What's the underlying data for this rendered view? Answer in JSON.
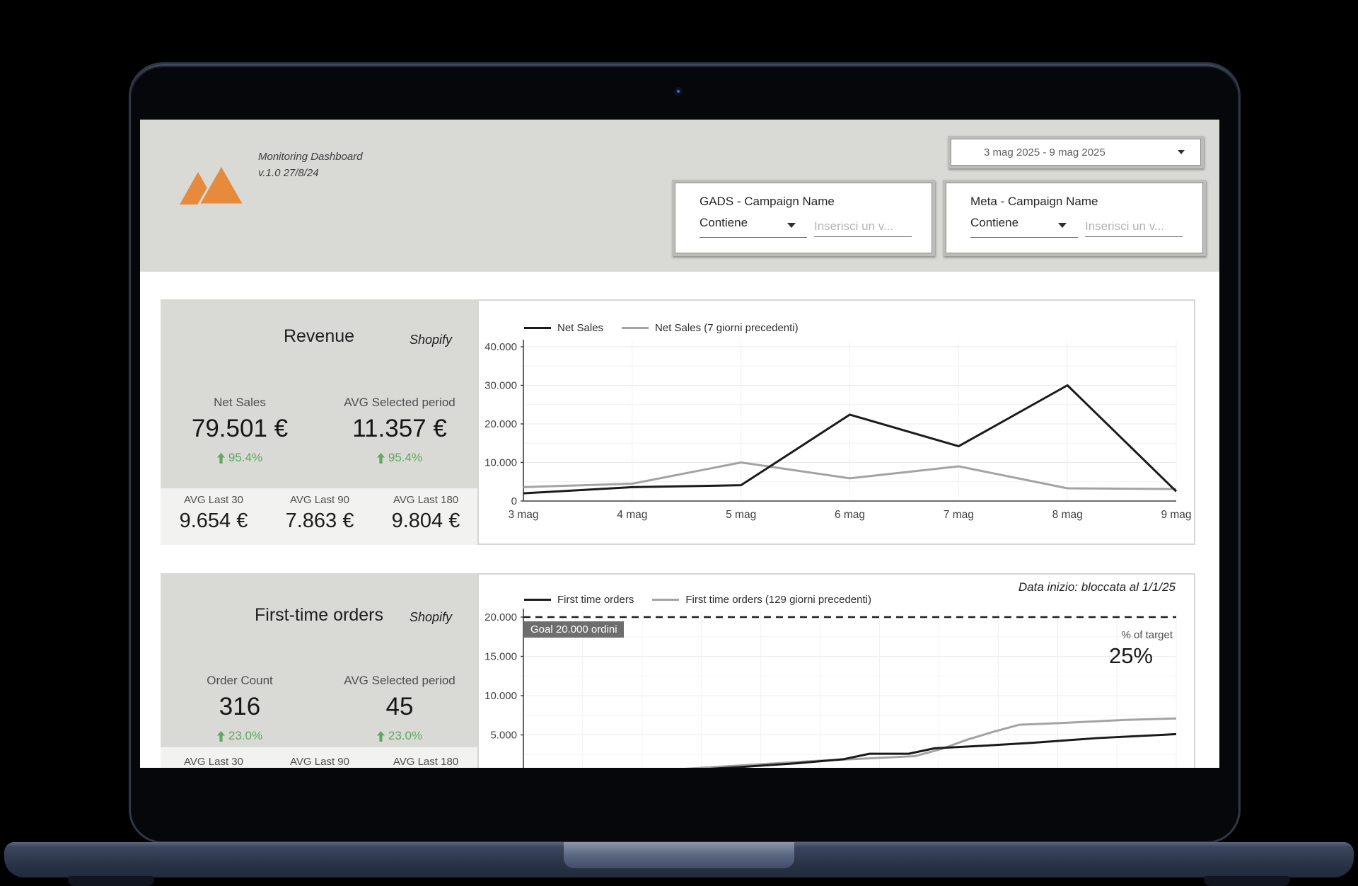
{
  "header": {
    "title": "Monitoring Dashboard",
    "version": "v.1.0 27/8/24",
    "date_range": {
      "value": "3 mag 2025 - 9 mag 2025"
    },
    "filters": [
      {
        "title": "GADS - Campaign Name",
        "operator": "Contiene",
        "placeholder": "Inserisci un v..."
      },
      {
        "title": "Meta - Campaign Name",
        "operator": "Contiene",
        "placeholder": "Inserisci un v..."
      }
    ]
  },
  "revenue_card": {
    "title": "Revenue",
    "source": "Shopify",
    "metrics": [
      {
        "label": "Net Sales",
        "value": "79.501 €",
        "delta": "95.4%",
        "delta_direction": "up"
      },
      {
        "label": "AVG Selected period",
        "value": "11.357 €",
        "delta": "95.4%",
        "delta_direction": "up"
      }
    ],
    "averages": [
      {
        "label": "AVG Last 30",
        "value": "9.654 €"
      },
      {
        "label": "AVG Last 90",
        "value": "7.863 €"
      },
      {
        "label": "AVG Last 180",
        "value": "9.804 €"
      }
    ]
  },
  "orders_card": {
    "title": "First-time orders",
    "source": "Shopify",
    "metrics": [
      {
        "label": "Order Count",
        "value": "316",
        "delta": "23.0%",
        "delta_direction": "up"
      },
      {
        "label": "AVG Selected period",
        "value": "45",
        "delta": "23.0%",
        "delta_direction": "up"
      }
    ],
    "averages": [
      {
        "label": "AVG Last 30"
      },
      {
        "label": "AVG Last 90"
      },
      {
        "label": "AVG Last 180"
      }
    ]
  },
  "chart_data": [
    {
      "type": "line",
      "title": "Net Sales daily trend",
      "categories": [
        "3 mag",
        "4 mag",
        "5 mag",
        "6 mag",
        "7 mag",
        "8 mag",
        "9 mag"
      ],
      "series": [
        {
          "name": "Net Sales",
          "color": "#1a1a1a",
          "values": [
            2000,
            3600,
            4100,
            22400,
            14200,
            30000,
            2500
          ]
        },
        {
          "name": "Net Sales (7 giorni precedenti)",
          "color": "#a3a3a3",
          "values": [
            3600,
            4500,
            10000,
            5900,
            9000,
            3300,
            3100
          ]
        }
      ],
      "ylim": [
        0,
        40000
      ],
      "ytick_labels": [
        "40.000",
        "30.000",
        "20.000",
        "10.000",
        "0"
      ],
      "grid": true,
      "legend_position": "top"
    },
    {
      "type": "line",
      "title": "First time orders cumulative vs goal",
      "note": "Data inizio: bloccata al 1/1/25",
      "goal": {
        "value": 20000,
        "label": "Goal 20.000 ordini"
      },
      "target_label": "% of target",
      "target_value": "25%",
      "series": [
        {
          "name": "First time orders",
          "color": "#1a1a1a",
          "points": [
            [
              0.17,
              100
            ],
            [
              0.25,
              500
            ],
            [
              0.33,
              900
            ],
            [
              0.42,
              1400
            ],
            [
              0.49,
              1900
            ],
            [
              0.53,
              2600
            ],
            [
              0.59,
              2600
            ],
            [
              0.63,
              3300
            ],
            [
              0.7,
              3600
            ],
            [
              0.78,
              4000
            ],
            [
              0.88,
              4600
            ],
            [
              1,
              5100
            ]
          ]
        },
        {
          "name": "First time orders (129 giorni precedenti)",
          "color": "#a3a3a3",
          "points": [
            [
              0.15,
              200
            ],
            [
              0.25,
              700
            ],
            [
              0.35,
              1200
            ],
            [
              0.45,
              1700
            ],
            [
              0.55,
              2100
            ],
            [
              0.6,
              2300
            ],
            [
              0.64,
              3200
            ],
            [
              0.68,
              4400
            ],
            [
              0.72,
              5400
            ],
            [
              0.76,
              6300
            ],
            [
              0.82,
              6500
            ],
            [
              0.92,
              6900
            ],
            [
              1,
              7100
            ]
          ]
        }
      ],
      "ylim": [
        0,
        20000
      ],
      "ytick_labels": [
        "20.000",
        "15.000",
        "10.000",
        "5.000"
      ],
      "grid": true,
      "legend_position": "top",
      "x_axis_labels_visible": false
    }
  ],
  "colors": {
    "brand_orange": "#e78a3c",
    "positive_green": "#5ea860",
    "header_gray": "#d9d9d6",
    "card_bottom_gray": "#f2f2f0",
    "goal_chip_gray": "#6e6e6e",
    "series_black": "#1a1a1a",
    "series_gray": "#a3a3a3"
  }
}
